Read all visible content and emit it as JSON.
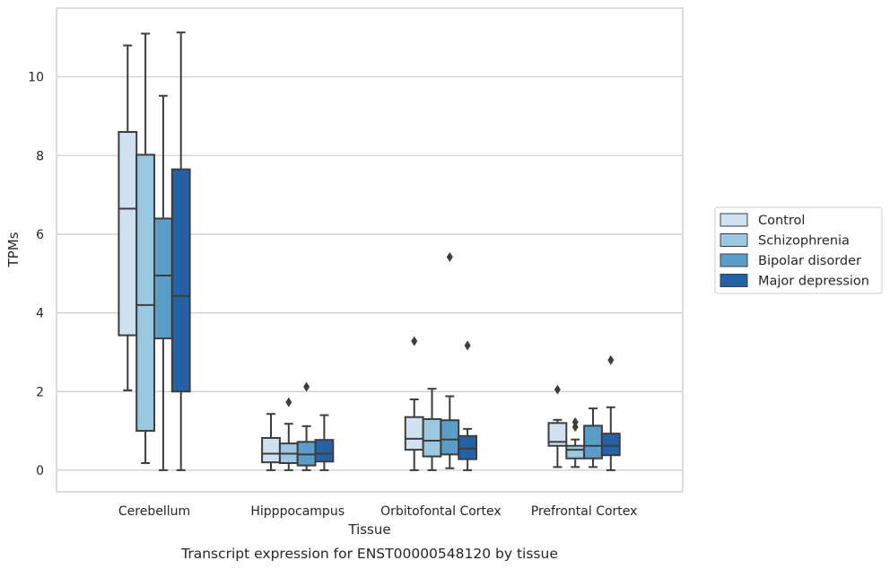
{
  "chart_data": {
    "type": "box",
    "xlabel": "Tissue",
    "ylabel": "TPMs",
    "caption": "Transcript expression for ENST00000548120 by tissue",
    "ylim": [
      -0.55,
      11.75
    ],
    "yticks": [
      0,
      2,
      4,
      6,
      8,
      10
    ],
    "grid": "horizontal",
    "legend_position": "right",
    "categories": [
      "Cerebellum",
      "Hipppocampus",
      "Orbitofontal Cortex",
      "Prefrontal Cortex"
    ],
    "series": [
      {
        "name": "Control",
        "color": "#d0e2f2",
        "boxes": [
          {
            "whislo": 2.03,
            "q1": 3.43,
            "med": 6.65,
            "q3": 8.6,
            "whishi": 10.8,
            "fliers": []
          },
          {
            "whislo": 0.0,
            "q1": 0.2,
            "med": 0.42,
            "q3": 0.82,
            "whishi": 1.43,
            "fliers": []
          },
          {
            "whislo": 0.0,
            "q1": 0.52,
            "med": 0.8,
            "q3": 1.35,
            "whishi": 1.8,
            "fliers": [
              3.28
            ]
          },
          {
            "whislo": 0.08,
            "q1": 0.62,
            "med": 0.72,
            "q3": 1.2,
            "whishi": 1.28,
            "fliers": [
              2.05
            ]
          }
        ]
      },
      {
        "name": "Schizophrenia",
        "color": "#9ac8e0",
        "boxes": [
          {
            "whislo": 0.18,
            "q1": 1.0,
            "med": 4.2,
            "q3": 8.02,
            "whishi": 11.1,
            "fliers": []
          },
          {
            "whislo": 0.0,
            "q1": 0.18,
            "med": 0.42,
            "q3": 0.68,
            "whishi": 1.18,
            "fliers": [
              1.73
            ]
          },
          {
            "whislo": 0.0,
            "q1": 0.35,
            "med": 0.75,
            "q3": 1.3,
            "whishi": 2.07,
            "fliers": []
          },
          {
            "whislo": 0.08,
            "q1": 0.3,
            "med": 0.52,
            "q3": 0.62,
            "whishi": 0.78,
            "fliers": [
              1.1,
              1.22
            ]
          }
        ]
      },
      {
        "name": "Bipolar disorder",
        "color": "#5a9dc8",
        "boxes": [
          {
            "whislo": 0.0,
            "q1": 3.35,
            "med": 4.95,
            "q3": 6.4,
            "whishi": 9.52,
            "fliers": []
          },
          {
            "whislo": 0.0,
            "q1": 0.12,
            "med": 0.4,
            "q3": 0.72,
            "whishi": 1.12,
            "fliers": [
              2.12
            ]
          },
          {
            "whislo": 0.05,
            "q1": 0.4,
            "med": 0.78,
            "q3": 1.27,
            "whishi": 1.88,
            "fliers": [
              5.42
            ]
          },
          {
            "whislo": 0.08,
            "q1": 0.3,
            "med": 0.62,
            "q3": 1.13,
            "whishi": 1.57,
            "fliers": []
          }
        ]
      },
      {
        "name": "Major depression",
        "color": "#2462a5",
        "boxes": [
          {
            "whislo": 0.0,
            "q1": 2.0,
            "med": 4.43,
            "q3": 7.65,
            "whishi": 11.13,
            "fliers": []
          },
          {
            "whislo": 0.0,
            "q1": 0.22,
            "med": 0.42,
            "q3": 0.77,
            "whishi": 1.4,
            "fliers": []
          },
          {
            "whislo": 0.0,
            "q1": 0.28,
            "med": 0.55,
            "q3": 0.87,
            "whishi": 1.05,
            "fliers": [
              3.17
            ]
          },
          {
            "whislo": 0.0,
            "q1": 0.38,
            "med": 0.62,
            "q3": 0.93,
            "whishi": 1.6,
            "fliers": [
              2.8
            ]
          }
        ]
      }
    ]
  }
}
